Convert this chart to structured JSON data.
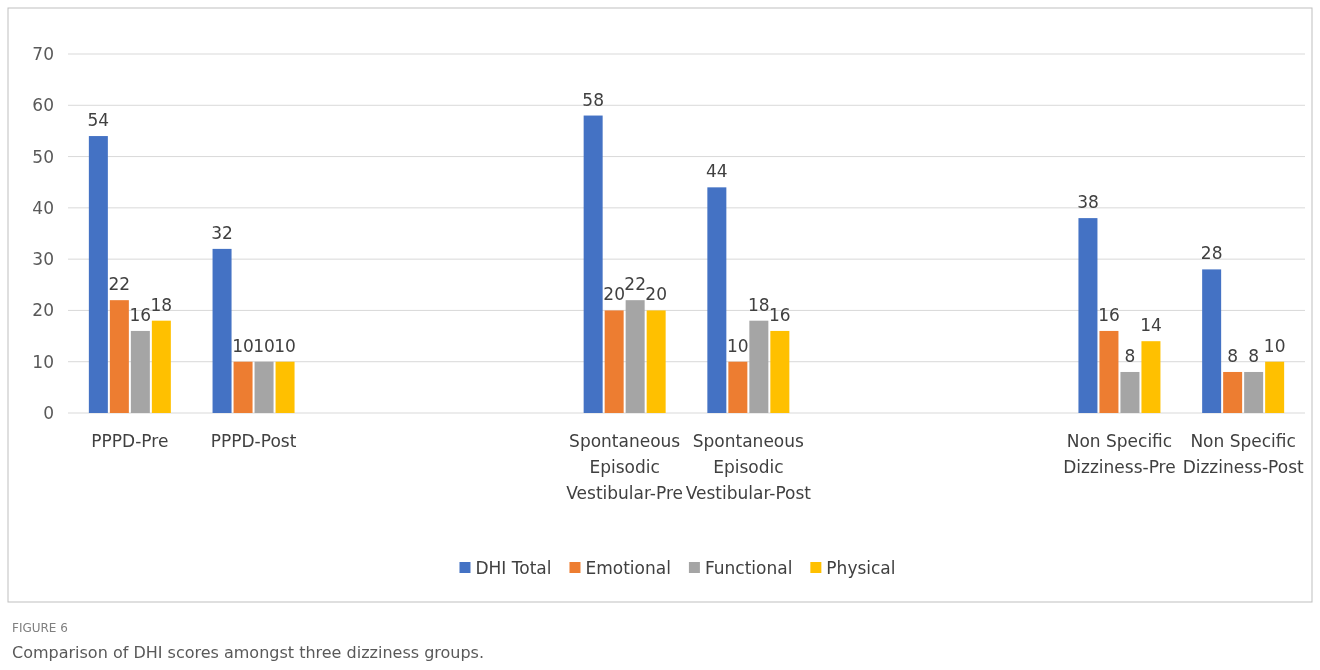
{
  "chart_data": {
    "type": "bar",
    "categories": [
      "PPPD-Pre",
      "PPPD-Post",
      null,
      null,
      "Spontaneous Episodic Vestibular-Pre",
      "Spontaneous Episodic Vestibular-Post",
      null,
      null,
      "Non Specific Dizziness-Pre",
      "Non Specific Dizziness-Post"
    ],
    "series": [
      {
        "name": "DHI Total",
        "color": "#4472c4",
        "values": [
          54,
          32,
          null,
          null,
          58,
          44,
          null,
          null,
          38,
          28
        ]
      },
      {
        "name": "Emotional",
        "color": "#ed7d31",
        "values": [
          22,
          10,
          null,
          null,
          20,
          10,
          null,
          null,
          16,
          8
        ]
      },
      {
        "name": "Functional",
        "color": "#a5a5a5",
        "values": [
          16,
          10,
          null,
          null,
          22,
          18,
          null,
          null,
          8,
          8
        ]
      },
      {
        "name": "Physical",
        "color": "#ffc000",
        "values": [
          18,
          10,
          null,
          null,
          20,
          16,
          null,
          null,
          14,
          10
        ]
      }
    ],
    "ylim": [
      0,
      70
    ],
    "yticks": [
      0,
      10,
      20,
      30,
      40,
      50,
      60,
      70
    ],
    "grid": "y",
    "legend": "bottom",
    "data_labels": true,
    "annotations": [
      "FIGURE 6",
      "Comparison of DHI scores amongst three dizziness groups."
    ]
  }
}
